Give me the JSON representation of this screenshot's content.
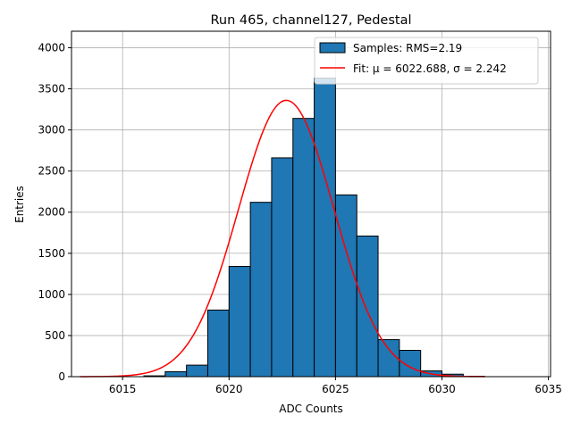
{
  "chart_data": {
    "type": "bar",
    "title": "Run 465, channel127, Pedestal",
    "xlabel": "ADC Counts",
    "ylabel": "Entries",
    "xlim": [
      6012.6,
      6035.1
    ],
    "ylim": [
      0,
      4200
    ],
    "grid": true,
    "xticks": [
      6015,
      6020,
      6025,
      6030,
      6035
    ],
    "yticks": [
      0,
      500,
      1000,
      1500,
      2000,
      2500,
      3000,
      3500,
      4000
    ],
    "bin_width": 1,
    "bins": [
      {
        "x": 6016,
        "count": 10
      },
      {
        "x": 6017,
        "count": 60
      },
      {
        "x": 6018,
        "count": 140
      },
      {
        "x": 6019,
        "count": 810
      },
      {
        "x": 6020,
        "count": 1340
      },
      {
        "x": 6021,
        "count": 2120
      },
      {
        "x": 6022,
        "count": 2660
      },
      {
        "x": 6023,
        "count": 3140
      },
      {
        "x": 6024,
        "count": 3630
      },
      {
        "x": 6025,
        "count": 2210
      },
      {
        "x": 6026,
        "count": 1710
      },
      {
        "x": 6027,
        "count": 450
      },
      {
        "x": 6028,
        "count": 320
      },
      {
        "x": 6029,
        "count": 70
      },
      {
        "x": 6030,
        "count": 30
      },
      {
        "x": 6031,
        "count": 5
      }
    ],
    "fit": {
      "mu": 6022.688,
      "sigma": 2.242,
      "amplitude": 3360,
      "x_range": [
        6013,
        6032
      ],
      "color": "#ff0000"
    },
    "bar_color": "#1f77b4",
    "legend": {
      "location": "top-right",
      "entries": [
        {
          "label": "Samples: RMS=2.19",
          "kind": "patch"
        },
        {
          "label": "Fit: μ = 6022.688, σ = 2.242",
          "kind": "line"
        }
      ]
    }
  }
}
